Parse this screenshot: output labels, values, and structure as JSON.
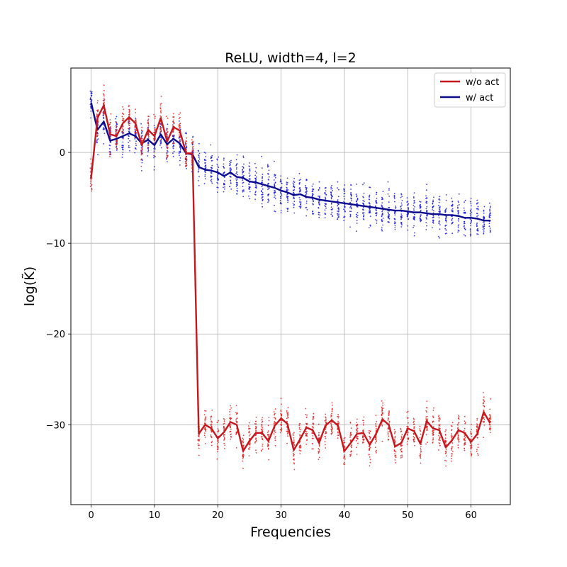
{
  "chart_data": {
    "type": "line",
    "title": "ReLU, width=4, l=2",
    "xlabel": "Frequencies",
    "ylabel": "log(K̃)",
    "xlim": [
      -3.2,
      66.2
    ],
    "ylim": [
      -38.8,
      9.3
    ],
    "xticks": [
      0,
      10,
      20,
      30,
      40,
      50,
      60
    ],
    "yticks": [
      0,
      -10,
      -20,
      -30
    ],
    "grid": true,
    "legend_position": "top-right",
    "series": [
      {
        "name": "w/o act",
        "color": "#c4171e",
        "scatter_color": "#e0201e",
        "scatter_spread": 1.4,
        "x": [
          0,
          1,
          2,
          3,
          4,
          5,
          6,
          7,
          8,
          9,
          10,
          11,
          12,
          13,
          14,
          15,
          16,
          17,
          18,
          19,
          20,
          21,
          22,
          23,
          24,
          25,
          26,
          27,
          28,
          29,
          30,
          31,
          32,
          33,
          34,
          35,
          36,
          37,
          38,
          39,
          40,
          41,
          42,
          43,
          44,
          45,
          46,
          47,
          48,
          49,
          50,
          51,
          52,
          53,
          54,
          55,
          56,
          57,
          58,
          59,
          60,
          61,
          62,
          63
        ],
        "y": [
          -2.8,
          3.8,
          5.2,
          2.0,
          1.8,
          3.2,
          3.9,
          3.2,
          0.8,
          2.5,
          1.8,
          3.8,
          1.2,
          2.8,
          2.4,
          -0.1,
          -0.1,
          -31.0,
          -30.0,
          -30.4,
          -31.5,
          -30.8,
          -29.7,
          -30.0,
          -32.9,
          -31.8,
          -30.9,
          -30.9,
          -31.8,
          -30.1,
          -29.3,
          -29.9,
          -32.8,
          -31.6,
          -30.3,
          -30.6,
          -32.0,
          -30.1,
          -29.5,
          -30.1,
          -32.9,
          -32.0,
          -31.0,
          -30.9,
          -32.2,
          -31.0,
          -29.4,
          -30.0,
          -32.4,
          -32.0,
          -30.4,
          -30.7,
          -32.1,
          -29.6,
          -30.4,
          -30.6,
          -32.5,
          -31.7,
          -30.6,
          -30.9,
          -31.9,
          -31.0,
          -28.6,
          -29.8
        ]
      },
      {
        "name": "w/ act",
        "color": "#0b0b8c",
        "scatter_color": "#1a1ae0",
        "scatter_spread": 1.5,
        "x": [
          0,
          1,
          2,
          3,
          4,
          5,
          6,
          7,
          8,
          9,
          10,
          11,
          12,
          13,
          14,
          15,
          16,
          17,
          18,
          19,
          20,
          21,
          22,
          23,
          24,
          25,
          26,
          27,
          28,
          29,
          30,
          31,
          32,
          33,
          34,
          35,
          36,
          37,
          38,
          39,
          40,
          41,
          42,
          43,
          44,
          45,
          46,
          47,
          48,
          49,
          50,
          51,
          52,
          53,
          54,
          55,
          56,
          57,
          58,
          59,
          60,
          61,
          62,
          63
        ],
        "y": [
          5.5,
          2.5,
          3.4,
          1.3,
          1.5,
          1.8,
          2.1,
          1.8,
          1.0,
          1.4,
          0.8,
          2.0,
          0.9,
          1.5,
          1.0,
          -0.1,
          -0.2,
          -1.6,
          -1.9,
          -2.0,
          -2.2,
          -2.6,
          -2.2,
          -2.7,
          -2.8,
          -3.2,
          -3.3,
          -3.5,
          -3.7,
          -3.9,
          -4.2,
          -4.4,
          -4.7,
          -4.6,
          -4.9,
          -5.0,
          -5.2,
          -5.3,
          -5.4,
          -5.5,
          -5.6,
          -5.7,
          -5.8,
          -5.9,
          -6.0,
          -6.1,
          -6.2,
          -6.3,
          -6.4,
          -6.4,
          -6.5,
          -6.6,
          -6.6,
          -6.7,
          -6.8,
          -6.8,
          -6.9,
          -6.9,
          -7.0,
          -7.2,
          -7.2,
          -7.3,
          -7.5,
          -7.5
        ]
      }
    ]
  }
}
